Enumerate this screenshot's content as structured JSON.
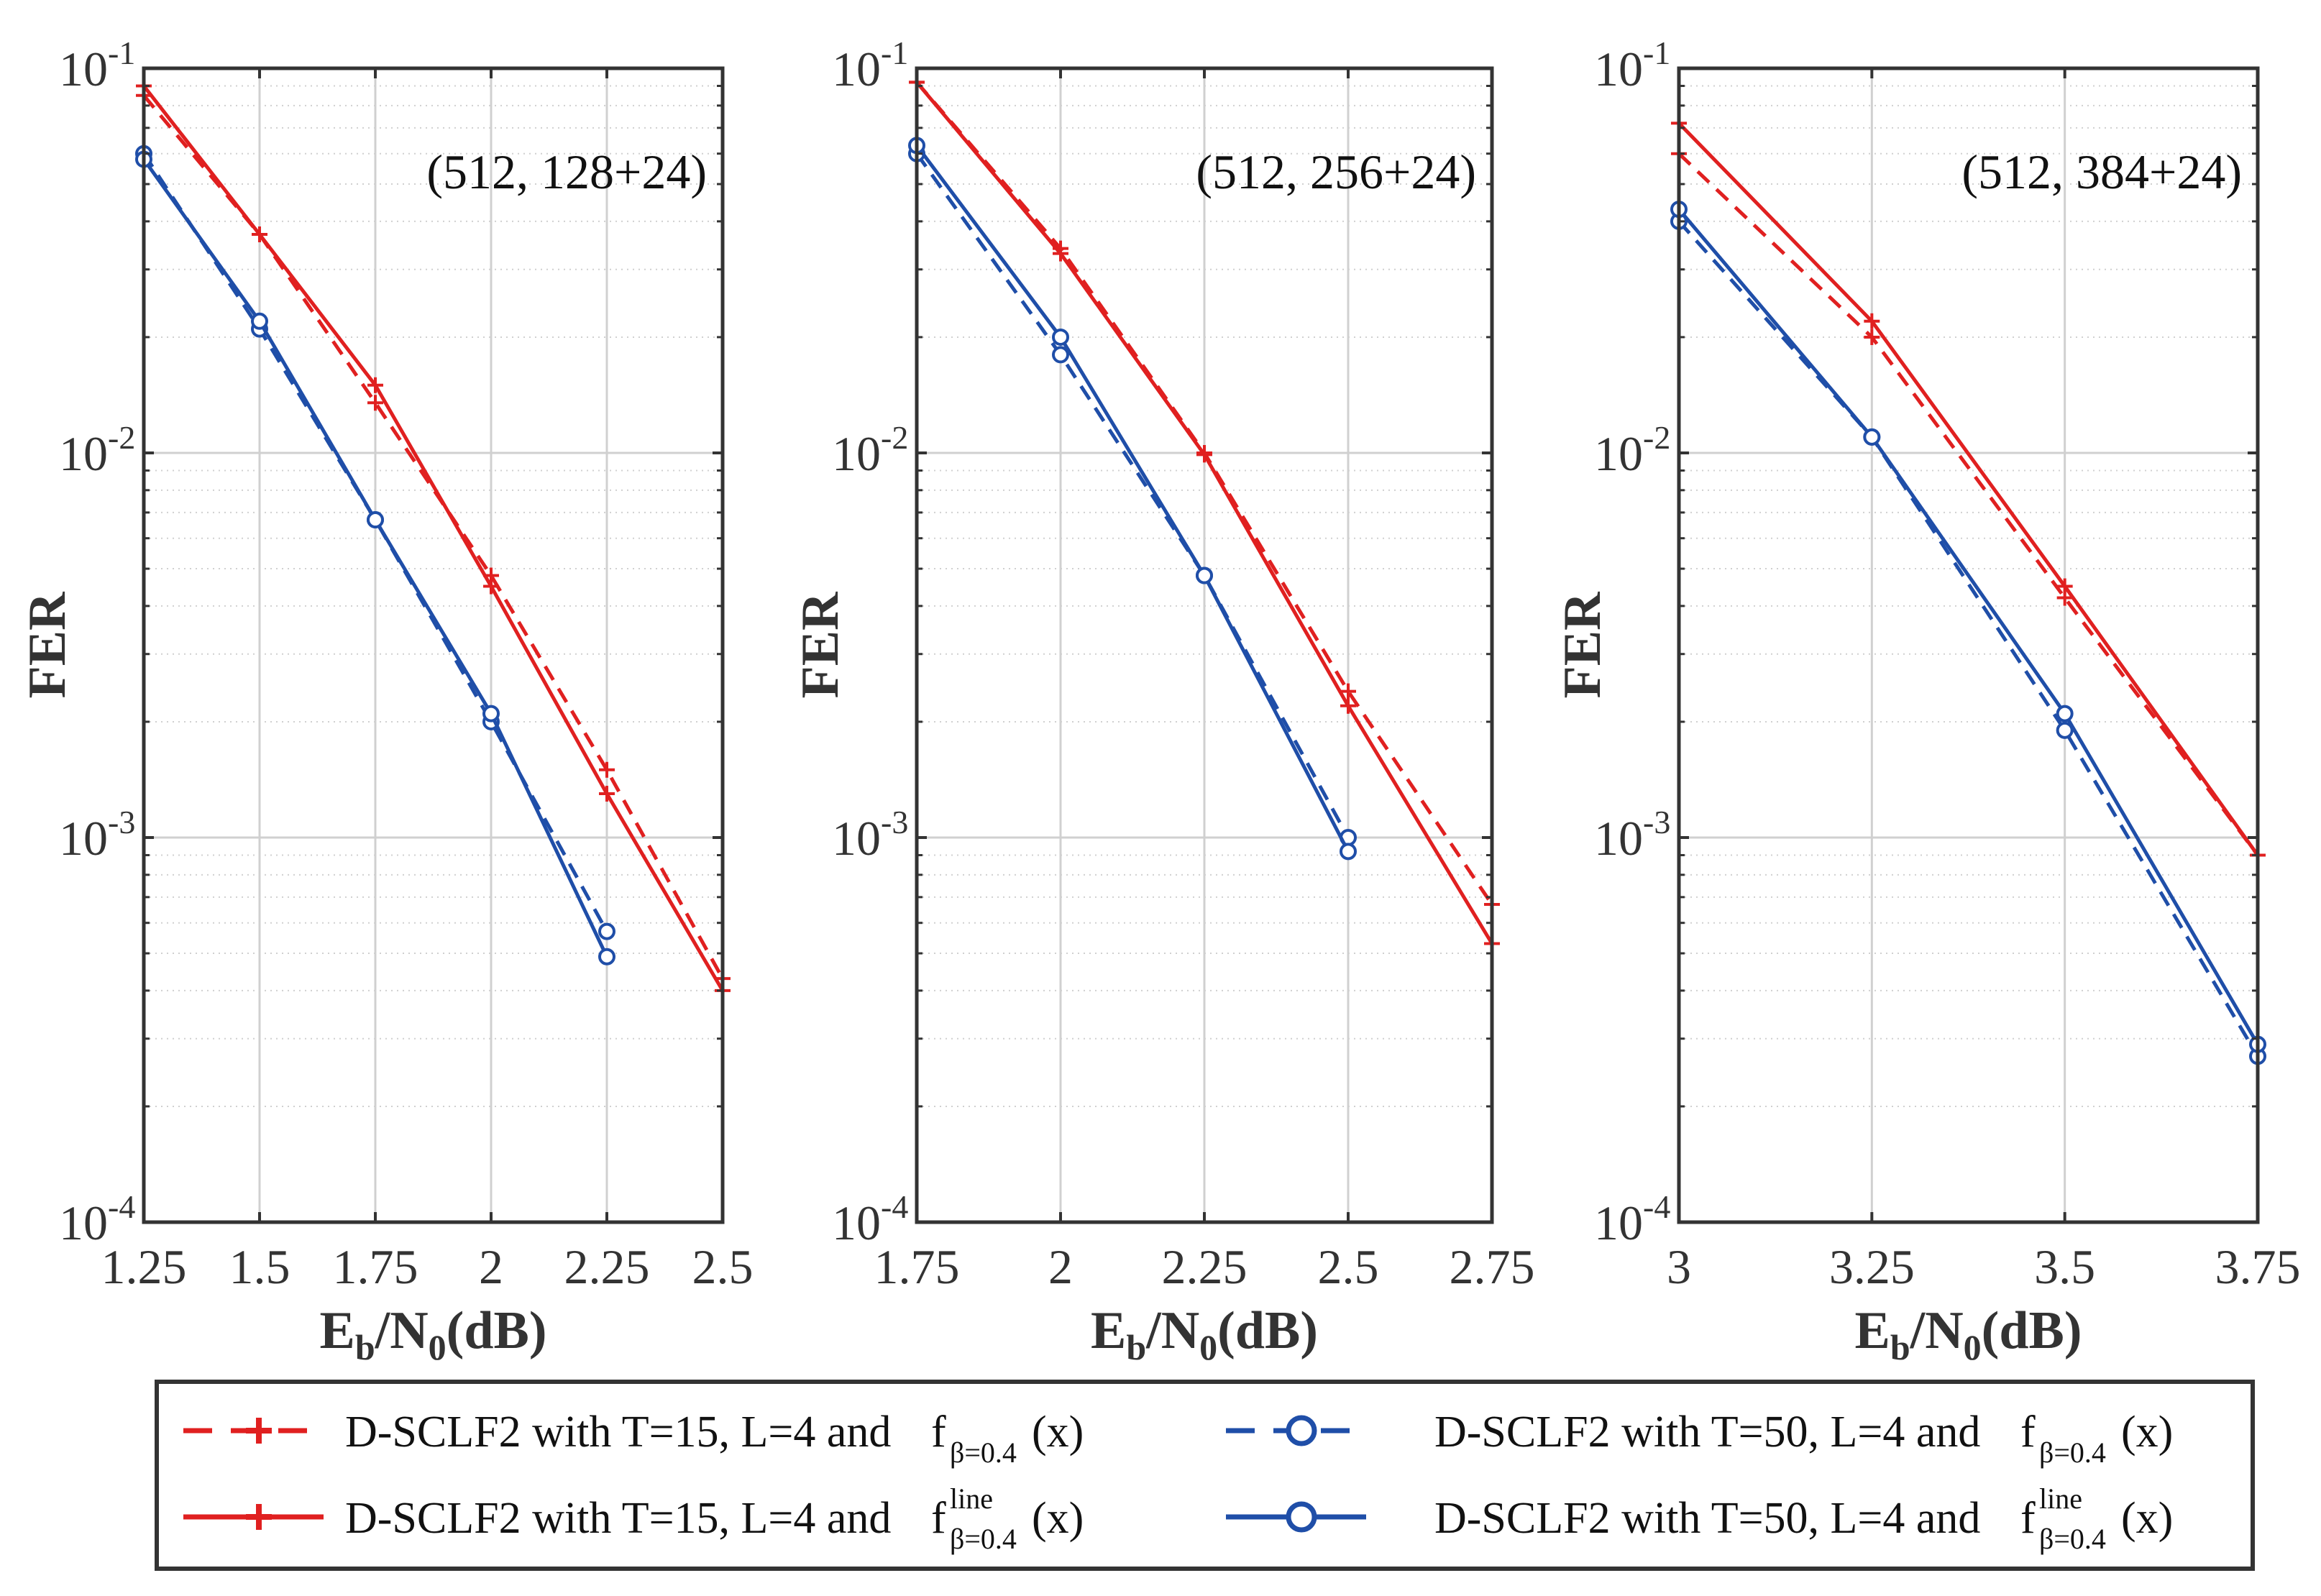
{
  "chart_data": [
    {
      "type": "line",
      "annotation": "(512, 128+24)",
      "x_ticks": [
        "1.25",
        "1.5",
        "1.75",
        "2",
        "2.25",
        "2.5"
      ],
      "xlim": [
        1.25,
        2.5
      ],
      "ylim": [
        0.0001,
        0.1
      ],
      "y_scale": "log",
      "y_ticks": [
        {
          "value": 0.1,
          "base": "10",
          "exp": "-1"
        },
        {
          "value": 0.01,
          "base": "10",
          "exp": "-2"
        },
        {
          "value": 0.001,
          "base": "10",
          "exp": "-3"
        },
        {
          "value": 0.0001,
          "base": "10",
          "exp": "-4"
        }
      ],
      "xlabel": {
        "main": "E",
        "sub1": "b",
        "mid": "/N",
        "sub2": "0",
        "tail": "(dB)"
      },
      "ylabel": "FER",
      "grid": true,
      "series": [
        {
          "id": "red-dashed",
          "x": [
            1.25,
            1.5,
            1.75,
            2.0,
            2.25,
            2.5
          ],
          "y": [
            0.085,
            0.037,
            0.0135,
            0.0048,
            0.0015,
            0.00043
          ]
        },
        {
          "id": "red-solid",
          "x": [
            1.25,
            1.5,
            1.75,
            2.0,
            2.25,
            2.5
          ],
          "y": [
            0.09,
            0.037,
            0.015,
            0.0045,
            0.0013,
            0.0004
          ]
        },
        {
          "id": "blue-dashed",
          "x": [
            1.25,
            1.5,
            1.75,
            2.0,
            2.25
          ],
          "y": [
            0.06,
            0.021,
            0.0067,
            0.002,
            0.00057
          ]
        },
        {
          "id": "blue-solid",
          "x": [
            1.25,
            1.5,
            1.75,
            2.0,
            2.25
          ],
          "y": [
            0.058,
            0.022,
            0.0067,
            0.0021,
            0.00049
          ]
        }
      ]
    },
    {
      "type": "line",
      "annotation": "(512, 256+24)",
      "x_ticks": [
        "1.75",
        "2",
        "2.25",
        "2.5",
        "2.75"
      ],
      "xlim": [
        1.75,
        2.75
      ],
      "ylim": [
        0.0001,
        0.1
      ],
      "y_scale": "log",
      "y_ticks": [
        {
          "value": 0.1,
          "base": "10",
          "exp": "-1"
        },
        {
          "value": 0.01,
          "base": "10",
          "exp": "-2"
        },
        {
          "value": 0.001,
          "base": "10",
          "exp": "-3"
        },
        {
          "value": 0.0001,
          "base": "10",
          "exp": "-4"
        }
      ],
      "xlabel": {
        "main": "E",
        "sub1": "b",
        "mid": "/N",
        "sub2": "0",
        "tail": "(dB)"
      },
      "ylabel": "FER",
      "grid": true,
      "series": [
        {
          "id": "red-dashed",
          "x": [
            1.75,
            2.0,
            2.25,
            2.5,
            2.75
          ],
          "y": [
            0.092,
            0.034,
            0.01,
            0.0024,
            0.00067
          ]
        },
        {
          "id": "red-solid",
          "x": [
            1.75,
            2.0,
            2.25,
            2.5,
            2.75
          ],
          "y": [
            0.092,
            0.033,
            0.0099,
            0.0022,
            0.00053
          ]
        },
        {
          "id": "blue-dashed",
          "x": [
            1.75,
            2.0,
            2.25,
            2.5
          ],
          "y": [
            0.06,
            0.018,
            0.0048,
            0.001
          ]
        },
        {
          "id": "blue-solid",
          "x": [
            1.75,
            2.0,
            2.25,
            2.5
          ],
          "y": [
            0.063,
            0.02,
            0.0048,
            0.00092
          ]
        }
      ]
    },
    {
      "type": "line",
      "annotation": "(512, 384+24)",
      "x_ticks": [
        "3",
        "3.25",
        "3.5",
        "3.75"
      ],
      "xlim": [
        3.0,
        3.75
      ],
      "ylim": [
        0.0001,
        0.1
      ],
      "y_scale": "log",
      "y_ticks": [
        {
          "value": 0.1,
          "base": "10",
          "exp": "-1"
        },
        {
          "value": 0.01,
          "base": "10",
          "exp": "-2"
        },
        {
          "value": 0.001,
          "base": "10",
          "exp": "-3"
        },
        {
          "value": 0.0001,
          "base": "10",
          "exp": "-4"
        }
      ],
      "xlabel": {
        "main": "E",
        "sub1": "b",
        "mid": "/N",
        "sub2": "0",
        "tail": "(dB)"
      },
      "ylabel": "FER",
      "grid": true,
      "series": [
        {
          "id": "red-dashed",
          "x": [
            3.0,
            3.25,
            3.5,
            3.75
          ],
          "y": [
            0.06,
            0.02,
            0.0042,
            0.0009
          ]
        },
        {
          "id": "red-solid",
          "x": [
            3.0,
            3.25,
            3.5,
            3.75
          ],
          "y": [
            0.072,
            0.022,
            0.0045,
            0.0009
          ]
        },
        {
          "id": "blue-dashed",
          "x": [
            3.0,
            3.25,
            3.5,
            3.75
          ],
          "y": [
            0.04,
            0.011,
            0.0019,
            0.00027
          ]
        },
        {
          "id": "blue-solid",
          "x": [
            3.0,
            3.25,
            3.5,
            3.75
          ],
          "y": [
            0.043,
            0.011,
            0.0021,
            0.00029
          ]
        }
      ]
    }
  ],
  "legend": {
    "placement": "bottom",
    "entries": [
      {
        "id": "red-dashed",
        "color": "#e02020",
        "dash": true,
        "marker": "plus",
        "text": "D-SCLF2 with T=15, L=4 and",
        "func": "f",
        "sub": "β=0.4",
        "sup": "",
        "arg": "(x)"
      },
      {
        "id": "blue-dashed",
        "color": "#1f4ea8",
        "dash": true,
        "marker": "circle",
        "text": "D-SCLF2 with T=50, L=4 and",
        "func": "f",
        "sub": "β=0.4",
        "sup": "",
        "arg": "(x)"
      },
      {
        "id": "red-solid",
        "color": "#e02020",
        "dash": false,
        "marker": "plus",
        "text": "D-SCLF2 with T=15, L=4 and",
        "func": "f",
        "sub": "β=0.4",
        "sup": "line",
        "arg": "(x)"
      },
      {
        "id": "blue-solid",
        "color": "#1f4ea8",
        "dash": false,
        "marker": "circle",
        "text": "D-SCLF2 with T=50, L=4 and",
        "func": "f",
        "sub": "β=0.4",
        "sup": "line",
        "arg": "(x)"
      }
    ]
  },
  "colors": {
    "red": "#e02020",
    "blue": "#1f4ea8",
    "axis": "#333333",
    "grid": "#d0d0d0"
  }
}
